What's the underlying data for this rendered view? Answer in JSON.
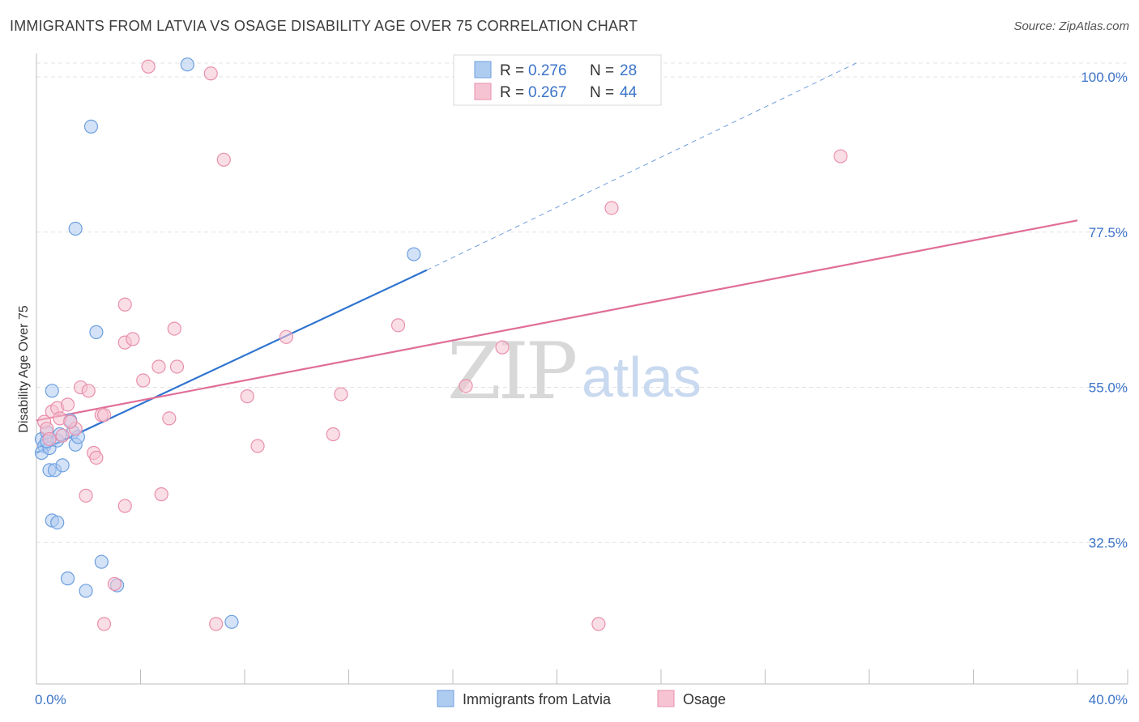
{
  "title": "IMMIGRANTS FROM LATVIA VS OSAGE DISABILITY AGE OVER 75 CORRELATION CHART",
  "source": "Source: ZipAtlas.com",
  "watermark": {
    "zip": "ZIP",
    "atlas": "atlas"
  },
  "colors": {
    "blue_fill": "#aecbf0",
    "blue_stroke": "#6d9fe0",
    "blue_line": "#2f74d0",
    "pink_fill": "#f6c3d2",
    "pink_stroke": "#e98fac",
    "pink_line": "#e06e98",
    "axis_text": "#3b73c8",
    "grid": "#e3e3e3"
  },
  "legend": {
    "items": [
      {
        "r_label": "R = ",
        "r_value": "0.276",
        "n_label": "N = ",
        "n_value": "28",
        "color": "blue"
      },
      {
        "r_label": "R = ",
        "r_value": "0.267",
        "n_label": "N = ",
        "n_value": "44",
        "color": "pink"
      }
    ]
  },
  "bottom_legend": [
    "Immigrants from Latvia",
    "Osage"
  ],
  "chart_data": {
    "type": "scatter",
    "title": "IMMIGRANTS FROM LATVIA VS OSAGE DISABILITY AGE OVER 75 CORRELATION CHART",
    "xlabel": "",
    "ylabel": "Disability Age Over 75",
    "xlim": [
      0,
      40
    ],
    "ylim": [
      12,
      102
    ],
    "x_tick_labels": [
      "0.0%",
      "40.0%"
    ],
    "y_ticks": [
      32.5,
      55.0,
      77.5,
      100.0
    ],
    "y_tick_labels": [
      "32.5%",
      "55.0%",
      "77.5%",
      "100.0%"
    ],
    "grid": true,
    "legend_position": "top-center",
    "series": [
      {
        "name": "Immigrants from Latvia",
        "color": "blue",
        "points": [
          [
            0.2,
            47.5
          ],
          [
            0.3,
            46.5
          ],
          [
            0.2,
            45.5
          ],
          [
            0.4,
            48.5
          ],
          [
            0.5,
            46.2
          ],
          [
            0.6,
            54.5
          ],
          [
            0.5,
            43.0
          ],
          [
            0.7,
            43.0
          ],
          [
            0.8,
            47.3
          ],
          [
            1.0,
            43.7
          ],
          [
            1.3,
            50.2
          ],
          [
            1.4,
            48.5
          ],
          [
            1.5,
            46.7
          ],
          [
            1.6,
            47.8
          ],
          [
            0.6,
            35.7
          ],
          [
            0.8,
            35.4
          ],
          [
            1.2,
            27.3
          ],
          [
            1.9,
            25.5
          ],
          [
            2.5,
            29.7
          ],
          [
            3.1,
            26.3
          ],
          [
            2.3,
            63.0
          ],
          [
            1.5,
            78.0
          ],
          [
            2.1,
            92.8
          ],
          [
            5.8,
            101.8
          ],
          [
            7.5,
            21.0
          ],
          [
            14.5,
            74.3
          ],
          [
            0.4,
            47.2
          ],
          [
            0.9,
            48.2
          ]
        ],
        "trend": {
          "x_start": 0,
          "y_start": 45.5,
          "x_end": 15.0,
          "y_end": 72.0,
          "dashed_to_x": 31.5,
          "dashed_to_y": 102
        }
      },
      {
        "name": "Osage",
        "color": "pink",
        "points": [
          [
            0.3,
            50.0
          ],
          [
            0.4,
            49.0
          ],
          [
            0.5,
            47.5
          ],
          [
            0.6,
            51.5
          ],
          [
            0.8,
            52.0
          ],
          [
            0.9,
            50.5
          ],
          [
            1.0,
            48.0
          ],
          [
            1.2,
            52.5
          ],
          [
            1.5,
            49.0
          ],
          [
            1.7,
            55.0
          ],
          [
            2.0,
            54.5
          ],
          [
            2.2,
            45.5
          ],
          [
            2.3,
            44.8
          ],
          [
            2.5,
            51.0
          ],
          [
            1.9,
            39.3
          ],
          [
            2.6,
            51.0
          ],
          [
            3.4,
            67.0
          ],
          [
            3.4,
            61.5
          ],
          [
            3.7,
            62.0
          ],
          [
            4.1,
            56.0
          ],
          [
            4.7,
            58.0
          ],
          [
            5.3,
            63.5
          ],
          [
            5.4,
            58.0
          ],
          [
            4.8,
            39.5
          ],
          [
            3.4,
            37.8
          ],
          [
            5.1,
            50.5
          ],
          [
            8.1,
            53.7
          ],
          [
            8.5,
            46.5
          ],
          [
            9.6,
            62.3
          ],
          [
            11.4,
            48.2
          ],
          [
            11.7,
            54.0
          ],
          [
            13.9,
            64.0
          ],
          [
            16.5,
            55.2
          ],
          [
            17.9,
            60.8
          ],
          [
            22.1,
            81.0
          ],
          [
            30.9,
            88.5
          ],
          [
            4.3,
            101.5
          ],
          [
            6.7,
            100.5
          ],
          [
            7.2,
            88.0
          ],
          [
            3.0,
            26.5
          ],
          [
            2.6,
            20.7
          ],
          [
            6.9,
            20.7
          ],
          [
            21.6,
            20.7
          ],
          [
            1.3,
            50.0
          ]
        ],
        "trend": {
          "x_start": 0,
          "y_start": 50.2,
          "x_end": 40,
          "y_end": 79.2
        }
      }
    ]
  }
}
